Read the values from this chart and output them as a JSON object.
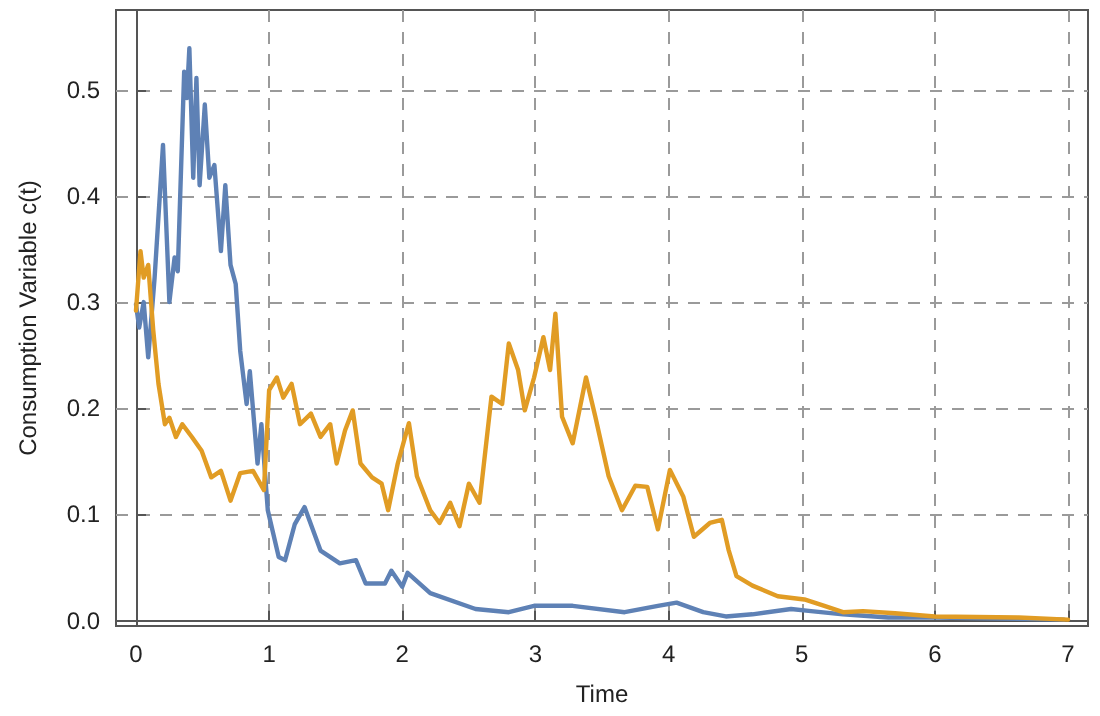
{
  "chart_data": {
    "type": "line",
    "xlabel": "Time",
    "ylabel": "Consumption Variable c(t)",
    "xlim": [
      -0.15,
      7.15
    ],
    "ylim": [
      -0.005,
      0.575
    ],
    "xticks": [
      0,
      1,
      2,
      3,
      4,
      5,
      6,
      7
    ],
    "yticks": [
      {
        "value": 0,
        "label": "0.0"
      },
      0.1,
      0.2,
      0.3,
      0.4,
      0.5
    ],
    "grid": true,
    "marker": "none",
    "line_style": "solid",
    "series": [
      {
        "color": "#5e81b5",
        "x": [
          0,
          0.024,
          0.058,
          0.092,
          0.14,
          0.203,
          0.251,
          0.29,
          0.314,
          0.362,
          0.382,
          0.401,
          0.43,
          0.454,
          0.478,
          0.517,
          0.551,
          0.589,
          0.638,
          0.671,
          0.71,
          0.749,
          0.783,
          0.831,
          0.855,
          0.913,
          0.942,
          0.99,
          1.072,
          1.12,
          1.193,
          1.266,
          1.386,
          1.531,
          1.652,
          1.725,
          1.87,
          1.918,
          2.0,
          2.04,
          2.21,
          2.55,
          2.8,
          2.99,
          3.28,
          3.67,
          3.92,
          4.06,
          4.26,
          4.43,
          4.63,
          4.92,
          5.07,
          5.31,
          5.65,
          6.0,
          6.97
        ],
        "values": [
          0.298,
          0.276,
          0.3,
          0.248,
          0.323,
          0.448,
          0.3,
          0.342,
          0.329,
          0.517,
          0.492,
          0.539,
          0.417,
          0.511,
          0.41,
          0.486,
          0.417,
          0.429,
          0.348,
          0.41,
          0.335,
          0.317,
          0.254,
          0.204,
          0.235,
          0.148,
          0.185,
          0.104,
          0.06,
          0.057,
          0.091,
          0.107,
          0.066,
          0.054,
          0.057,
          0.035,
          0.035,
          0.047,
          0.032,
          0.045,
          0.026,
          0.011,
          0.008,
          0.014,
          0.014,
          0.008,
          0.014,
          0.017,
          0.008,
          0.004,
          0.006,
          0.011,
          0.009,
          0.006,
          0.003,
          0.003,
          0.001
        ]
      },
      {
        "color": "#e19c24",
        "x": [
          0,
          0.034,
          0.058,
          0.092,
          0.13,
          0.169,
          0.217,
          0.251,
          0.3,
          0.348,
          0.42,
          0.493,
          0.565,
          0.638,
          0.71,
          0.783,
          0.879,
          0.961,
          1.0,
          1.058,
          1.106,
          1.169,
          1.232,
          1.314,
          1.386,
          1.459,
          1.507,
          1.57,
          1.628,
          1.686,
          1.773,
          1.845,
          1.894,
          1.966,
          2.05,
          2.11,
          2.21,
          2.28,
          2.36,
          2.43,
          2.5,
          2.58,
          2.67,
          2.75,
          2.8,
          2.87,
          2.92,
          2.99,
          3.06,
          3.11,
          3.15,
          3.2,
          3.28,
          3.38,
          3.45,
          3.55,
          3.65,
          3.75,
          3.84,
          3.92,
          4.01,
          4.11,
          4.19,
          4.31,
          4.4,
          4.45,
          4.51,
          4.63,
          4.82,
          5.02,
          5.17,
          5.31,
          5.46,
          5.7,
          6.0,
          6.63,
          7.0
        ],
        "values": [
          0.292,
          0.348,
          0.323,
          0.335,
          0.273,
          0.223,
          0.185,
          0.191,
          0.173,
          0.185,
          0.173,
          0.16,
          0.135,
          0.141,
          0.113,
          0.139,
          0.141,
          0.123,
          0.217,
          0.229,
          0.21,
          0.223,
          0.185,
          0.195,
          0.173,
          0.185,
          0.148,
          0.179,
          0.198,
          0.148,
          0.135,
          0.129,
          0.104,
          0.148,
          0.186,
          0.136,
          0.104,
          0.092,
          0.111,
          0.089,
          0.129,
          0.111,
          0.211,
          0.204,
          0.261,
          0.236,
          0.198,
          0.229,
          0.267,
          0.236,
          0.289,
          0.192,
          0.167,
          0.229,
          0.192,
          0.136,
          0.104,
          0.127,
          0.126,
          0.086,
          0.142,
          0.117,
          0.079,
          0.092,
          0.095,
          0.067,
          0.042,
          0.033,
          0.023,
          0.02,
          0.014,
          0.008,
          0.009,
          0.007,
          0.004,
          0.003,
          0.001
        ]
      }
    ]
  }
}
